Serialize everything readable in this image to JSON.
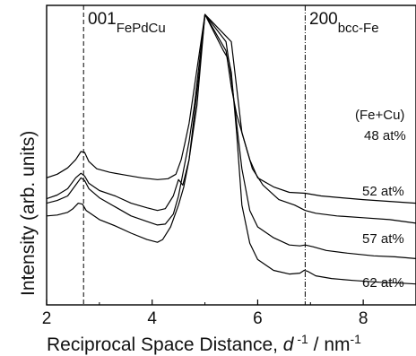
{
  "chart_data": {
    "type": "line",
    "xlabel_prefix": "Reciprocal Space Distance, ",
    "xlabel_var": "d",
    "xlabel_exp": " -1",
    "xlabel_mid": " / nm",
    "xlabel_unit_exp": "-1",
    "ylabel": "Intensity (arb. units)",
    "xlim": [
      2,
      9
    ],
    "xticks": [
      "2",
      "4",
      "6",
      "8"
    ],
    "y_ticks_shown": false,
    "grid": false,
    "reference_lines": [
      {
        "x": 2.7,
        "style": "dashed",
        "label_main": "001",
        "label_sub": "FePdCu"
      },
      {
        "x": 6.9,
        "style": "dash-dot",
        "label_main": "200",
        "label_sub": "bcc-Fe"
      }
    ],
    "legend_header": "(Fe+Cu)",
    "series": [
      {
        "name": "48 at%",
        "x": [
          2.0,
          2.2,
          2.4,
          2.55,
          2.65,
          2.72,
          2.8,
          2.95,
          3.2,
          3.5,
          3.8,
          4.1,
          4.3,
          4.45,
          4.55,
          4.62,
          4.7,
          4.8,
          4.9,
          5.0,
          5.5,
          5.6,
          5.7,
          5.85,
          6.0,
          6.3,
          6.6,
          6.9,
          7.2,
          7.6,
          8.0,
          8.5,
          9.0
        ],
        "y": [
          7.0,
          7.2,
          7.55,
          8.0,
          8.45,
          8.4,
          7.9,
          7.5,
          7.3,
          7.15,
          7.0,
          6.9,
          6.95,
          7.2,
          8.0,
          8.9,
          10.0,
          12.0,
          14.0,
          16.0,
          14.5,
          12.0,
          9.5,
          8.0,
          7.0,
          6.5,
          6.2,
          6.15,
          6.0,
          5.9,
          5.8,
          5.7,
          5.6
        ]
      },
      {
        "name": "52 at%",
        "x": [
          2.0,
          2.2,
          2.4,
          2.55,
          2.65,
          2.72,
          2.8,
          3.0,
          3.3,
          3.6,
          3.9,
          4.1,
          4.25,
          4.4,
          4.5,
          4.58,
          4.7,
          4.8,
          4.9,
          5.0,
          5.4,
          5.5,
          5.6,
          5.75,
          5.9,
          6.1,
          6.4,
          6.7,
          6.9,
          7.1,
          7.5,
          8.0,
          8.5,
          9.0
        ],
        "y": [
          5.85,
          6.05,
          6.4,
          7.0,
          7.25,
          7.1,
          6.7,
          6.3,
          6.0,
          5.6,
          5.35,
          5.2,
          5.3,
          6.0,
          6.9,
          6.6,
          8.0,
          10.5,
          13.0,
          16.0,
          14.0,
          12.0,
          10.5,
          9.0,
          7.5,
          6.6,
          5.8,
          5.5,
          5.2,
          5.05,
          4.9,
          4.8,
          4.7,
          4.5
        ]
      },
      {
        "name": "57 at%",
        "x": [
          2.0,
          2.2,
          2.4,
          2.55,
          2.65,
          2.72,
          2.8,
          3.0,
          3.3,
          3.6,
          3.9,
          4.1,
          4.25,
          4.4,
          4.5,
          4.6,
          4.7,
          4.8,
          4.9,
          5.0,
          5.4,
          5.5,
          5.6,
          5.7,
          5.85,
          6.0,
          6.3,
          6.6,
          6.8,
          6.9,
          7.05,
          7.3,
          7.7,
          8.2,
          8.6,
          9.0
        ],
        "y": [
          5.6,
          5.75,
          6.0,
          6.6,
          7.0,
          6.85,
          6.4,
          5.9,
          5.4,
          4.9,
          4.6,
          4.4,
          4.45,
          5.0,
          6.0,
          7.5,
          9.0,
          11.0,
          13.5,
          16.0,
          14.5,
          12.5,
          10.0,
          7.5,
          5.2,
          4.3,
          3.7,
          3.3,
          3.25,
          3.3,
          3.2,
          3.0,
          2.85,
          2.7,
          2.65,
          2.55
        ]
      },
      {
        "name": "62 at%",
        "x": [
          2.0,
          2.2,
          2.4,
          2.5,
          2.6,
          2.68,
          2.75,
          2.85,
          3.0,
          3.3,
          3.6,
          3.9,
          4.1,
          4.2,
          4.35,
          4.5,
          4.6,
          4.7,
          4.85,
          5.0,
          5.35,
          5.45,
          5.5,
          5.6,
          5.7,
          5.85,
          6.0,
          6.3,
          6.6,
          6.8,
          6.88,
          6.95,
          7.1,
          7.4,
          7.8,
          8.3,
          8.7,
          9.0
        ],
        "y": [
          4.9,
          4.95,
          5.1,
          5.3,
          5.6,
          5.55,
          5.2,
          5.0,
          4.7,
          4.35,
          3.95,
          3.6,
          3.45,
          3.6,
          4.3,
          5.5,
          6.5,
          8.0,
          11.0,
          16.0,
          14.0,
          13.5,
          12.8,
          9.5,
          5.5,
          3.4,
          2.5,
          1.9,
          1.7,
          1.75,
          1.9,
          1.85,
          1.6,
          1.45,
          1.35,
          1.25,
          1.2,
          1.15
        ]
      }
    ],
    "series_labels": [
      "48 at%",
      "52 at%",
      "57 at%",
      "62 at%"
    ]
  }
}
